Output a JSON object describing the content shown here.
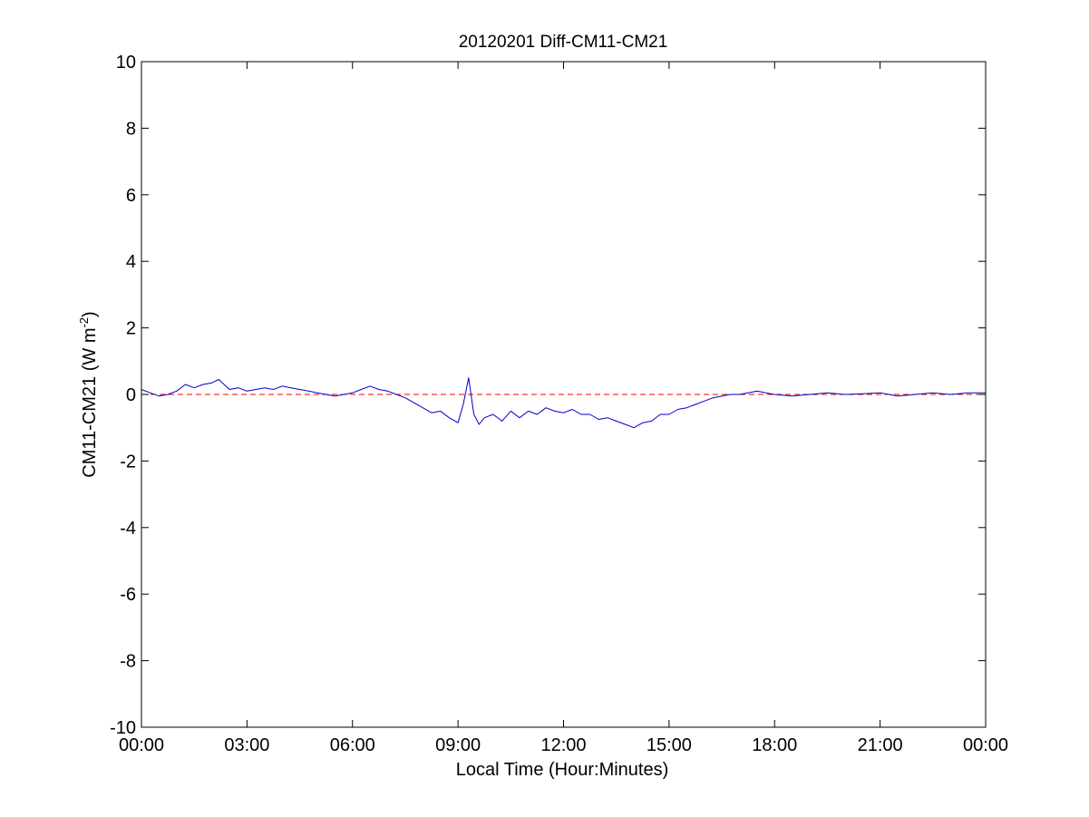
{
  "chart_data": {
    "type": "line",
    "title": "20120201 Diff-CM11-CM21",
    "xlabel": "Local Time (Hour:Minutes)",
    "ylabel": "CM11-CM21 (W m-2)",
    "ylabel_base": "CM11-CM21 (W m",
    "ylabel_sup": "-2",
    "ylabel_end": ")",
    "xlim": [
      0,
      24
    ],
    "ylim": [
      -10,
      10
    ],
    "x_ticks": [
      0,
      3,
      6,
      9,
      12,
      15,
      18,
      21,
      24
    ],
    "x_tick_labels": [
      "00:00",
      "03:00",
      "06:00",
      "09:00",
      "12:00",
      "15:00",
      "18:00",
      "21:00",
      "00:00"
    ],
    "y_ticks": [
      -10,
      -8,
      -6,
      -4,
      -2,
      0,
      2,
      4,
      6,
      8,
      10
    ],
    "y_tick_labels": [
      "-10",
      "-8",
      "-6",
      "-4",
      "-2",
      "0",
      "2",
      "4",
      "6",
      "8",
      "10"
    ],
    "grid": false,
    "legend": "none",
    "reference_line": {
      "y": 0,
      "color": "#ff0000",
      "style": "dashed"
    },
    "series": [
      {
        "color": "#0000cc",
        "x": [
          0.0,
          0.25,
          0.5,
          0.75,
          1.0,
          1.25,
          1.5,
          1.75,
          2.0,
          2.2,
          2.5,
          2.75,
          3.0,
          3.25,
          3.5,
          3.75,
          4.0,
          4.25,
          4.5,
          4.75,
          5.0,
          5.25,
          5.5,
          5.75,
          6.0,
          6.25,
          6.5,
          6.75,
          7.0,
          7.25,
          7.5,
          7.75,
          8.0,
          8.25,
          8.5,
          8.75,
          9.0,
          9.15,
          9.3,
          9.45,
          9.6,
          9.75,
          10.0,
          10.25,
          10.5,
          10.75,
          11.0,
          11.25,
          11.5,
          11.75,
          12.0,
          12.25,
          12.5,
          12.75,
          13.0,
          13.25,
          13.5,
          13.75,
          14.0,
          14.25,
          14.5,
          14.75,
          15.0,
          15.25,
          15.5,
          15.75,
          16.0,
          16.25,
          16.5,
          16.75,
          17.0,
          17.25,
          17.5,
          17.75,
          18.0,
          18.5,
          19.0,
          19.5,
          20.0,
          20.5,
          21.0,
          21.5,
          22.0,
          22.5,
          23.0,
          23.5,
          24.0
        ],
        "y": [
          0.15,
          0.05,
          -0.05,
          0.0,
          0.1,
          0.3,
          0.2,
          0.3,
          0.35,
          0.45,
          0.15,
          0.2,
          0.1,
          0.15,
          0.2,
          0.15,
          0.25,
          0.2,
          0.15,
          0.1,
          0.05,
          0.0,
          -0.05,
          0.0,
          0.05,
          0.15,
          0.25,
          0.15,
          0.1,
          0.0,
          -0.1,
          -0.25,
          -0.4,
          -0.55,
          -0.5,
          -0.7,
          -0.85,
          -0.3,
          0.5,
          -0.6,
          -0.9,
          -0.7,
          -0.6,
          -0.8,
          -0.5,
          -0.7,
          -0.5,
          -0.6,
          -0.4,
          -0.5,
          -0.55,
          -0.45,
          -0.6,
          -0.6,
          -0.75,
          -0.7,
          -0.8,
          -0.9,
          -1.0,
          -0.85,
          -0.8,
          -0.6,
          -0.6,
          -0.45,
          -0.4,
          -0.3,
          -0.2,
          -0.1,
          -0.05,
          0.0,
          0.0,
          0.05,
          0.1,
          0.05,
          0.0,
          -0.05,
          0.0,
          0.05,
          0.0,
          0.02,
          0.05,
          -0.05,
          0.0,
          0.05,
          0.0,
          0.05,
          0.05
        ]
      }
    ]
  }
}
